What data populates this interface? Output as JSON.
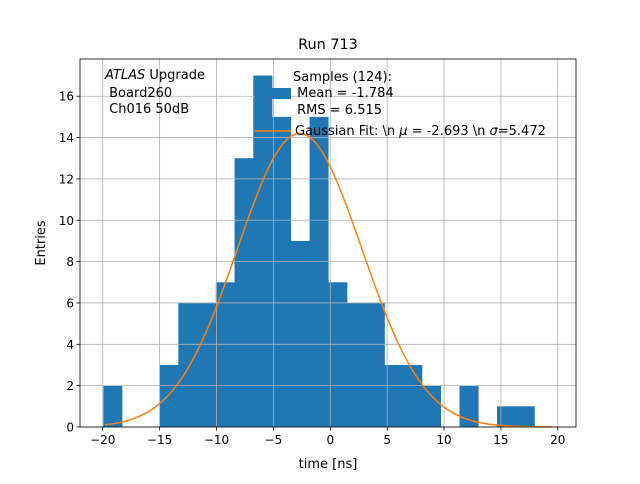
{
  "chart_data": {
    "type": "bar",
    "title": "Run 713",
    "xlabel": "time [ns]",
    "ylabel": "Entries",
    "xlim": [
      -22,
      21.6
    ],
    "ylim": [
      0,
      17.8
    ],
    "grid": true,
    "xticks": [
      -20,
      -15,
      -10,
      -5,
      0,
      5,
      10,
      15,
      20
    ],
    "xtick_labels": [
      "−20",
      "−15",
      "−10",
      "−5",
      "0",
      "5",
      "10",
      "15",
      "20"
    ],
    "yticks": [
      0,
      2,
      4,
      6,
      8,
      10,
      12,
      14,
      16
    ],
    "ytick_labels": [
      "0",
      "2",
      "4",
      "6",
      "8",
      "10",
      "12",
      "14",
      "16"
    ],
    "bin_edges_range": [
      -19.95,
      19.6
    ],
    "values": [
      2,
      0,
      0,
      3,
      6,
      6,
      7,
      13,
      17,
      15,
      9,
      15,
      7,
      6,
      6,
      3,
      3,
      2,
      0,
      2,
      0,
      1,
      1,
      0
    ],
    "bar_color": "#1f77b4",
    "fit": {
      "mu": -2.693,
      "sigma": 5.472,
      "amplitude": 14.2,
      "xrange": [
        -19.8,
        19.5
      ],
      "color": "#ff7f0e"
    },
    "annotation": {
      "atlas": "ATLAS",
      "upgrade": " Upgrade",
      "line2": " Board260",
      "line3": " Ch016 50dB"
    },
    "legend": {
      "placement": "top-center",
      "hist_lines": [
        "Samples (124):",
        " Mean = -1.784",
        " RMS = 6.515"
      ],
      "fit_label_prefix": "Gaussian Fit: \\n ",
      "fit_mu_sym": "μ",
      "fit_label_mid": " = -2.693 \\n ",
      "fit_sigma_sym": "σ",
      "fit_label_end": "=5.472"
    }
  }
}
